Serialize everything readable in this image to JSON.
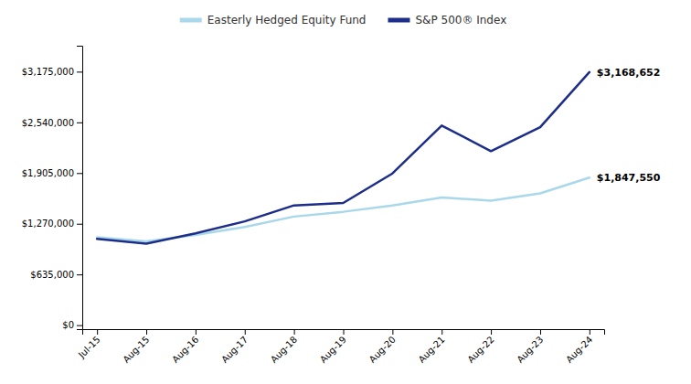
{
  "chart_data": {
    "type": "line",
    "categories": [
      "Jul-15",
      "Aug-15",
      "Aug-16",
      "Aug-17",
      "Aug-18",
      "Aug-19",
      "Aug-20",
      "Aug-21",
      "Aug-22",
      "Aug-23",
      "Aug-24"
    ],
    "series": [
      {
        "name": "Easterly Hedged Equity Fund",
        "color": "#a8d8ea",
        "values": [
          1100000,
          1050000,
          1130000,
          1230000,
          1360000,
          1420000,
          1500000,
          1600000,
          1560000,
          1650000,
          1847550
        ]
      },
      {
        "name": "S&P 500® Index",
        "color": "#1c2d8a",
        "values": [
          1080000,
          1020000,
          1150000,
          1300000,
          1500000,
          1530000,
          1900000,
          2500000,
          2180000,
          2480000,
          3168652
        ]
      }
    ],
    "ylim": [
      -50000,
      3500000
    ],
    "yticks": [
      {
        "value": 0,
        "label": "$0"
      },
      {
        "value": 635000,
        "label": "$635,000"
      },
      {
        "value": 1270000,
        "label": "$1,270,000"
      },
      {
        "value": 1905000,
        "label": "$1,905,000"
      },
      {
        "value": 2540000,
        "label": "$2,540,000"
      },
      {
        "value": 3175000,
        "label": "$3,175,000"
      }
    ],
    "grid": false,
    "legend": "top",
    "annotations": [
      {
        "text": "$3,168,652",
        "x": "Aug-24",
        "y": 3168652
      },
      {
        "text": "$1,847,550",
        "x": "Aug-24",
        "y": 1847550
      }
    ]
  }
}
